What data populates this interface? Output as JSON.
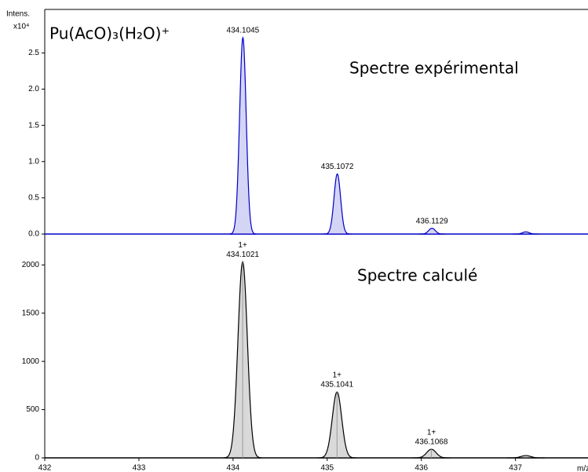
{
  "chart_data": [
    {
      "type": "area",
      "title": "Pu(AcO)₃(H₂O)⁺",
      "annotation": "Spectre expérimental",
      "y_label": "Intens.",
      "y_scale_label": "x10⁴",
      "x": [
        434.1045,
        435.1072,
        436.1129,
        437.11
      ],
      "values": [
        2.71,
        0.83,
        0.08,
        0.03
      ],
      "peak_labels": [
        "434.1045",
        "435.1072",
        "436.1129",
        null
      ],
      "color": "#0000c8",
      "fill": "#d4d4f4",
      "xlim": [
        432,
        437.77
      ],
      "ylim": [
        0,
        3.1
      ],
      "yticks": [
        {
          "value": 0,
          "label": "0.0"
        },
        {
          "value": 0.5,
          "label": "0.5"
        },
        {
          "value": 1,
          "label": "1.0"
        },
        {
          "value": 1.5,
          "label": "1.5"
        },
        {
          "value": 2,
          "label": "2.0"
        },
        {
          "value": 2.5,
          "label": "2.5"
        }
      ]
    },
    {
      "type": "area",
      "annotation": "Spectre calculé",
      "x": [
        434.1021,
        435.1041,
        436.1068,
        437.11
      ],
      "values": [
        2033,
        683,
        89,
        24
      ],
      "peak_labels": [
        "434.1021",
        "435.1041",
        "436.1068",
        null
      ],
      "charges": [
        "1+",
        "1+",
        "1+",
        null
      ],
      "color": "#000000",
      "fill": "#d9d9d9",
      "xlim": [
        432,
        437.77
      ],
      "ylim": [
        0,
        2320
      ],
      "yticks": [
        0,
        500,
        1000,
        1500,
        2000
      ],
      "xticks": [
        432,
        433,
        434,
        435,
        436,
        437
      ],
      "x_label": "m/z"
    }
  ]
}
